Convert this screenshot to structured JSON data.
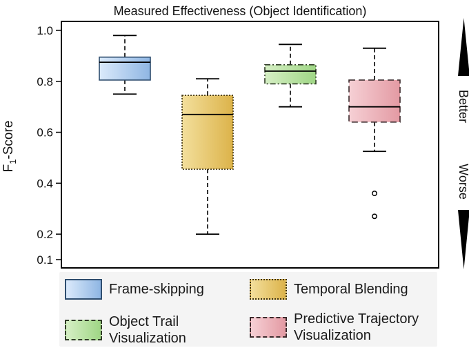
{
  "chart_data": {
    "type": "box",
    "title": "Measured Effectiveness (Object Identification)",
    "ylabel_main": "F",
    "ylabel_sub": "1",
    "ylabel_rest": "-Score",
    "ylim": [
      0.1,
      1.0
    ],
    "yticks": [
      "1.0",
      "0.8",
      "0.6",
      "0.4",
      "0.2",
      "0.1"
    ],
    "ytick_values": [
      1.0,
      0.8,
      0.6,
      0.4,
      0.2,
      0.1
    ],
    "grid": false,
    "side_labels": {
      "top": "Better",
      "bottom": "Worse"
    },
    "series": [
      {
        "name": "Frame-skipping",
        "whisker_low": 0.75,
        "q1": 0.805,
        "median": 0.875,
        "q3": 0.895,
        "whisker_high": 0.98,
        "outliers": [],
        "color_light": "#dbeafb",
        "color_dark": "#8fb6e3",
        "border": "#2e4d6e",
        "border_style": "solid"
      },
      {
        "name": "Temporal Blending",
        "whisker_low": 0.2,
        "q1": 0.455,
        "median": 0.67,
        "q3": 0.745,
        "whisker_high": 0.81,
        "outliers": [],
        "color_light": "#f3df9c",
        "color_dark": "#dcb34a",
        "border": "#3a2e0e",
        "border_style": "dotted"
      },
      {
        "name": "Object Trail Visualization",
        "whisker_low": 0.7,
        "q1": 0.79,
        "median": 0.84,
        "q3": 0.865,
        "whisker_high": 0.945,
        "outliers": [],
        "color_light": "#d6efc5",
        "color_dark": "#9fd685",
        "border": "#2f3b26",
        "border_style": "dashdot"
      },
      {
        "name": "Predictive Trajectory Visualization",
        "whisker_low": 0.525,
        "q1": 0.64,
        "median": 0.7,
        "q3": 0.805,
        "whisker_high": 0.93,
        "outliers": [
          0.36,
          0.27
        ],
        "color_light": "#f6d0d5",
        "color_dark": "#e39aa3",
        "border": "#3b2a2c",
        "border_style": "dashed"
      }
    ]
  },
  "legend": [
    {
      "label": "Frame-skipping"
    },
    {
      "label": "Temporal Blending"
    },
    {
      "label": "Object Trail Visualization"
    },
    {
      "label": "Predictive Trajectory Visualization"
    }
  ]
}
